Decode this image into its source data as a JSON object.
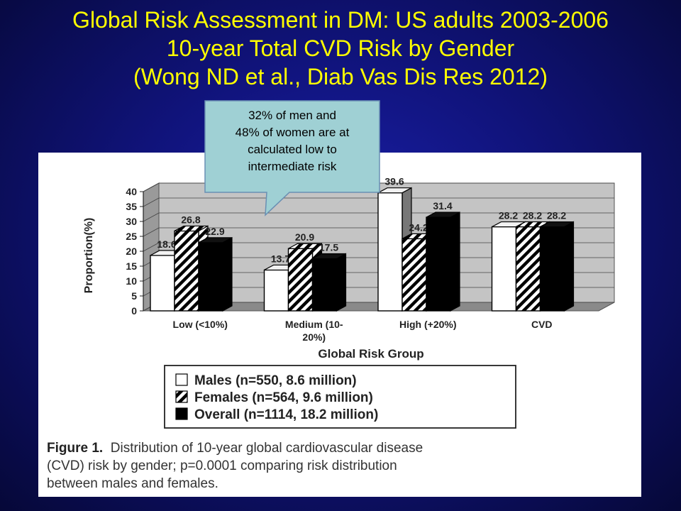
{
  "slide": {
    "title_line1": "Global Risk Assessment in DM: US adults 2003-2006",
    "title_line2": "10-year Total CVD Risk by Gender",
    "title_line3": "(Wong ND et al., Diab Vas Dis Res 2012)",
    "callout_line1": "32% of men and",
    "callout_line2": "48% of women are at",
    "callout_line3": "calculated low to",
    "callout_line4": "intermediate risk"
  },
  "figure": {
    "caption_label": "Figure 1.",
    "caption_line1": "Distribution of 10-year global cardiovascular disease",
    "caption_line2": "(CVD) risk by gender; p=0.0001 comparing risk distribution",
    "caption_line3": "between males and females."
  },
  "chart_data": {
    "type": "bar",
    "xlabel": "Global Risk Group",
    "ylabel": "Proportion(%)",
    "ylim": [
      0,
      40
    ],
    "yticks": [
      0,
      5,
      10,
      15,
      20,
      25,
      30,
      35,
      40
    ],
    "categories": [
      "Low (<10%)",
      "Medium (10-\n20%)",
      "High (+20%)",
      "CVD"
    ],
    "series": [
      {
        "name": "Males (n=550, 8.6 million)",
        "values": [
          18.6,
          13.7,
          39.6,
          28.2
        ],
        "pattern": "white"
      },
      {
        "name": "Females (n=564, 9.6 million)",
        "values": [
          26.8,
          20.9,
          24.2,
          28.2
        ],
        "pattern": "hatch"
      },
      {
        "name": "Overall (n=1114, 18.2 million)",
        "values": [
          22.9,
          17.5,
          31.4,
          28.2
        ],
        "pattern": "black"
      }
    ],
    "data_labels": [
      [
        "18.6",
        "26.8",
        "22.9"
      ],
      [
        "13.7",
        "20.9",
        "17.5"
      ],
      [
        "39.6",
        "24.2",
        "31.4"
      ],
      [
        "28.2",
        "28.2",
        "28.2"
      ]
    ],
    "legend_position": "bottom",
    "grid": true,
    "style": "3d"
  }
}
